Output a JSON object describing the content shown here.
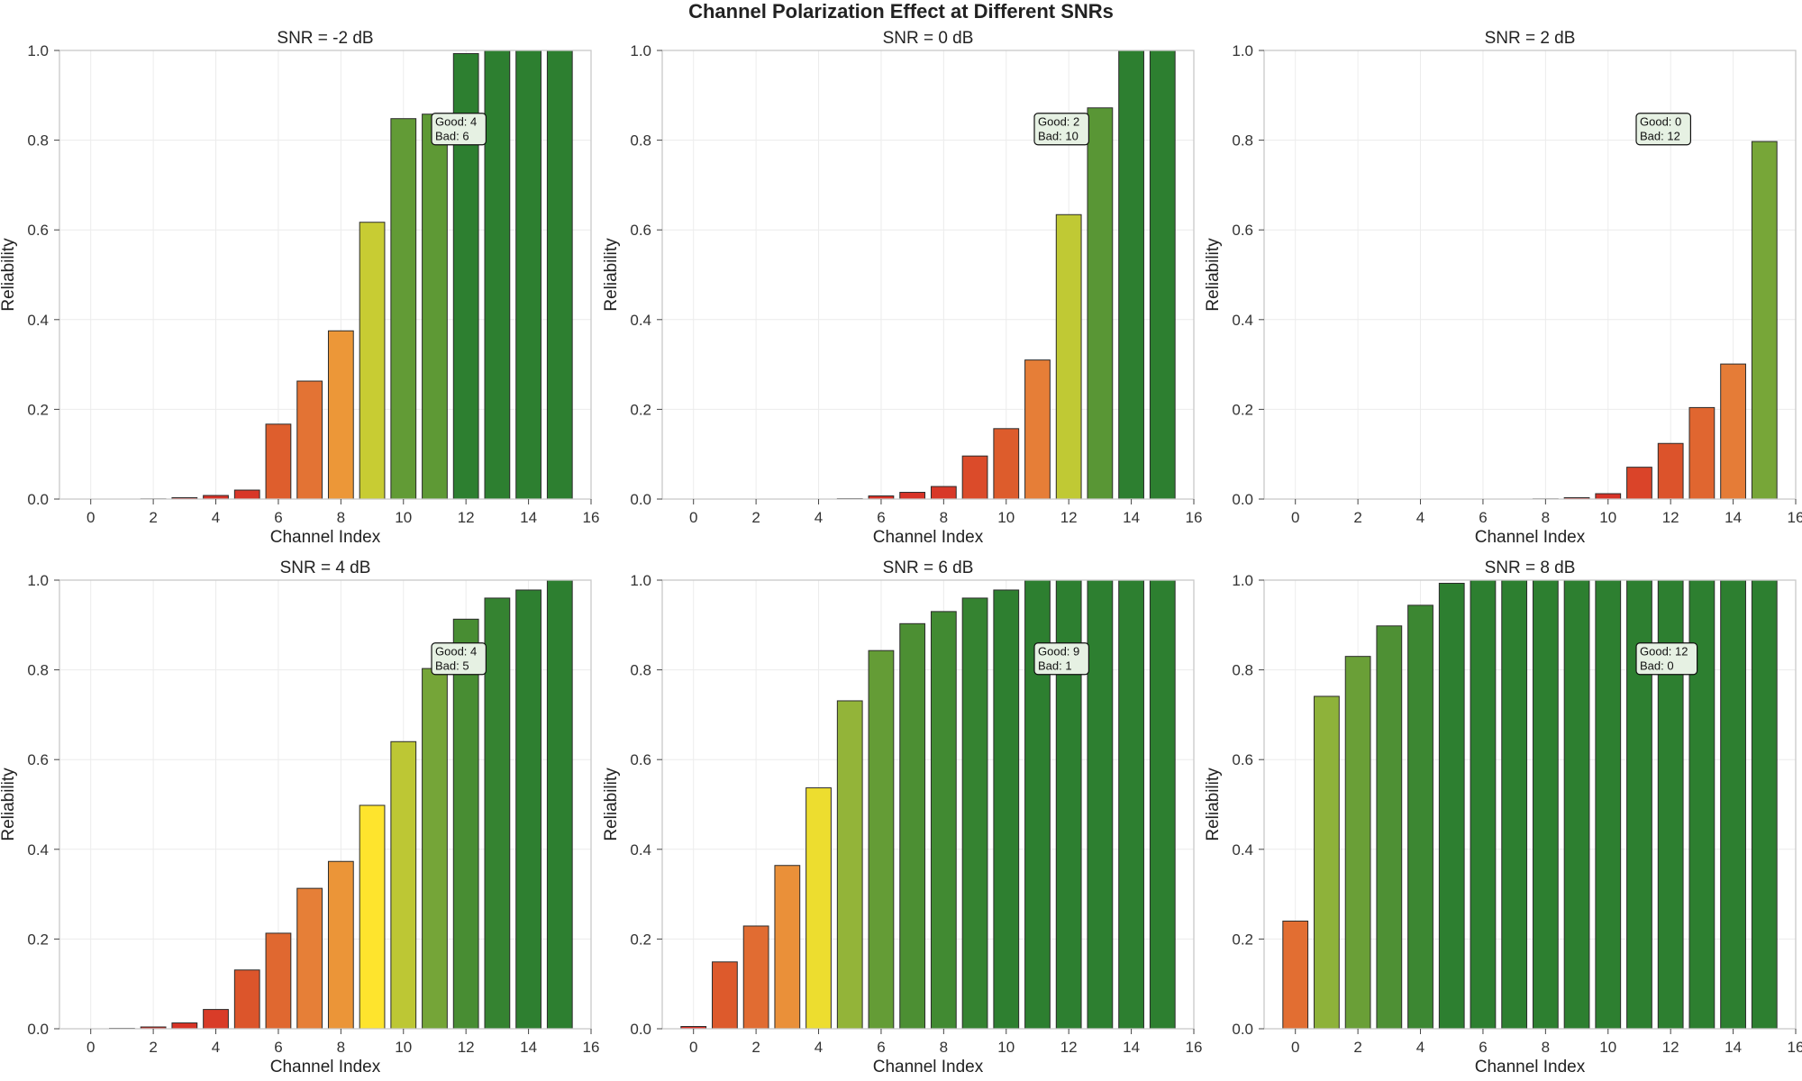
{
  "figure_title": "Channel Polarization Effect at Different SNRs",
  "colors": {
    "red": "#d73027",
    "orange": "#e8873a",
    "yellow": "#fee52d",
    "green": "#2d7f30"
  },
  "chart_data": [
    {
      "type": "bar",
      "title": "SNR = -2 dB",
      "xlabel": "Channel Index",
      "ylabel": "Reliability",
      "xlim": [
        -1,
        16
      ],
      "ylim": [
        0,
        1
      ],
      "xticks": [
        "0",
        "2",
        "4",
        "6",
        "8",
        "10",
        "12",
        "14",
        "16"
      ],
      "yticks": [
        "0.0",
        "0.2",
        "0.4",
        "0.6",
        "0.8",
        "1.0"
      ],
      "grid": true,
      "x": [
        0,
        1,
        2,
        3,
        4,
        5,
        6,
        7,
        8,
        9,
        10,
        11,
        12,
        13,
        14,
        15
      ],
      "values": [
        0.0,
        0.0,
        0.0005,
        0.003,
        0.008,
        0.02,
        0.167,
        0.263,
        0.375,
        0.617,
        0.848,
        0.858,
        0.993,
        1.0,
        1.0,
        1.0
      ],
      "annotation": [
        "Good: 4",
        "Bad: 6"
      ]
    },
    {
      "type": "bar",
      "title": "SNR = 0 dB",
      "xlabel": "Channel Index",
      "ylabel": "Reliability",
      "xlim": [
        -1,
        16
      ],
      "ylim": [
        0,
        1
      ],
      "xticks": [
        "0",
        "2",
        "4",
        "6",
        "8",
        "10",
        "12",
        "14",
        "16"
      ],
      "yticks": [
        "0.0",
        "0.2",
        "0.4",
        "0.6",
        "0.8",
        "1.0"
      ],
      "grid": true,
      "x": [
        0,
        1,
        2,
        3,
        4,
        5,
        6,
        7,
        8,
        9,
        10,
        11,
        12,
        13,
        14,
        15
      ],
      "values": [
        0.0,
        0.0,
        0.0,
        0.0,
        0.0,
        0.001,
        0.007,
        0.015,
        0.028,
        0.096,
        0.157,
        0.31,
        0.634,
        0.872,
        1.0,
        1.0
      ],
      "annotation": [
        "Good: 2",
        "Bad: 10"
      ]
    },
    {
      "type": "bar",
      "title": "SNR = 2 dB",
      "xlabel": "Channel Index",
      "ylabel": "Reliability",
      "xlim": [
        -1,
        16
      ],
      "ylim": [
        0,
        1
      ],
      "xticks": [
        "0",
        "2",
        "4",
        "6",
        "8",
        "10",
        "12",
        "14",
        "16"
      ],
      "yticks": [
        "0.0",
        "0.2",
        "0.4",
        "0.6",
        "0.8",
        "1.0"
      ],
      "grid": true,
      "x": [
        0,
        1,
        2,
        3,
        4,
        5,
        6,
        7,
        8,
        9,
        10,
        11,
        12,
        13,
        14,
        15
      ],
      "values": [
        0.0,
        0.0,
        0.0,
        0.0,
        0.0,
        0.0,
        0.0,
        0.0,
        0.0005,
        0.003,
        0.012,
        0.071,
        0.124,
        0.204,
        0.301,
        0.797
      ],
      "annotation": [
        "Good: 0",
        "Bad: 12"
      ]
    },
    {
      "type": "bar",
      "title": "SNR = 4 dB",
      "xlabel": "Channel Index",
      "ylabel": "Reliability",
      "xlim": [
        -1,
        16
      ],
      "ylim": [
        0,
        1
      ],
      "xticks": [
        "0",
        "2",
        "4",
        "6",
        "8",
        "10",
        "12",
        "14",
        "16"
      ],
      "yticks": [
        "0.0",
        "0.2",
        "0.4",
        "0.6",
        "0.8",
        "1.0"
      ],
      "grid": true,
      "x": [
        0,
        1,
        2,
        3,
        4,
        5,
        6,
        7,
        8,
        9,
        10,
        11,
        12,
        13,
        14,
        15
      ],
      "values": [
        0.0,
        0.001,
        0.004,
        0.013,
        0.043,
        0.131,
        0.213,
        0.313,
        0.373,
        0.498,
        0.64,
        0.803,
        0.913,
        0.96,
        0.978,
        1.0
      ],
      "annotation": [
        "Good: 4",
        "Bad: 5"
      ]
    },
    {
      "type": "bar",
      "title": "SNR = 6 dB",
      "xlabel": "Channel Index",
      "ylabel": "Reliability",
      "xlim": [
        -1,
        16
      ],
      "ylim": [
        0,
        1
      ],
      "xticks": [
        "0",
        "2",
        "4",
        "6",
        "8",
        "10",
        "12",
        "14",
        "16"
      ],
      "yticks": [
        "0.0",
        "0.2",
        "0.4",
        "0.6",
        "0.8",
        "1.0"
      ],
      "grid": true,
      "x": [
        0,
        1,
        2,
        3,
        4,
        5,
        6,
        7,
        8,
        9,
        10,
        11,
        12,
        13,
        14,
        15
      ],
      "values": [
        0.005,
        0.149,
        0.229,
        0.364,
        0.537,
        0.731,
        0.843,
        0.903,
        0.93,
        0.96,
        0.978,
        1.0,
        1.0,
        1.0,
        1.0,
        1.0
      ],
      "annotation": [
        "Good: 9",
        "Bad: 1"
      ]
    },
    {
      "type": "bar",
      "title": "SNR = 8 dB",
      "xlabel": "Channel Index",
      "ylabel": "Reliability",
      "xlim": [
        -1,
        16
      ],
      "ylim": [
        0,
        1
      ],
      "xticks": [
        "0",
        "2",
        "4",
        "6",
        "8",
        "10",
        "12",
        "14",
        "16"
      ],
      "yticks": [
        "0.0",
        "0.2",
        "0.4",
        "0.6",
        "0.8",
        "1.0"
      ],
      "grid": true,
      "x": [
        0,
        1,
        2,
        3,
        4,
        5,
        6,
        7,
        8,
        9,
        10,
        11,
        12,
        13,
        14,
        15
      ],
      "values": [
        0.24,
        0.741,
        0.83,
        0.898,
        0.944,
        0.993,
        1.0,
        1.0,
        1.0,
        1.0,
        1.0,
        1.0,
        1.0,
        1.0,
        1.0,
        1.0
      ],
      "annotation": [
        "Good: 12",
        "Bad: 0"
      ]
    }
  ]
}
